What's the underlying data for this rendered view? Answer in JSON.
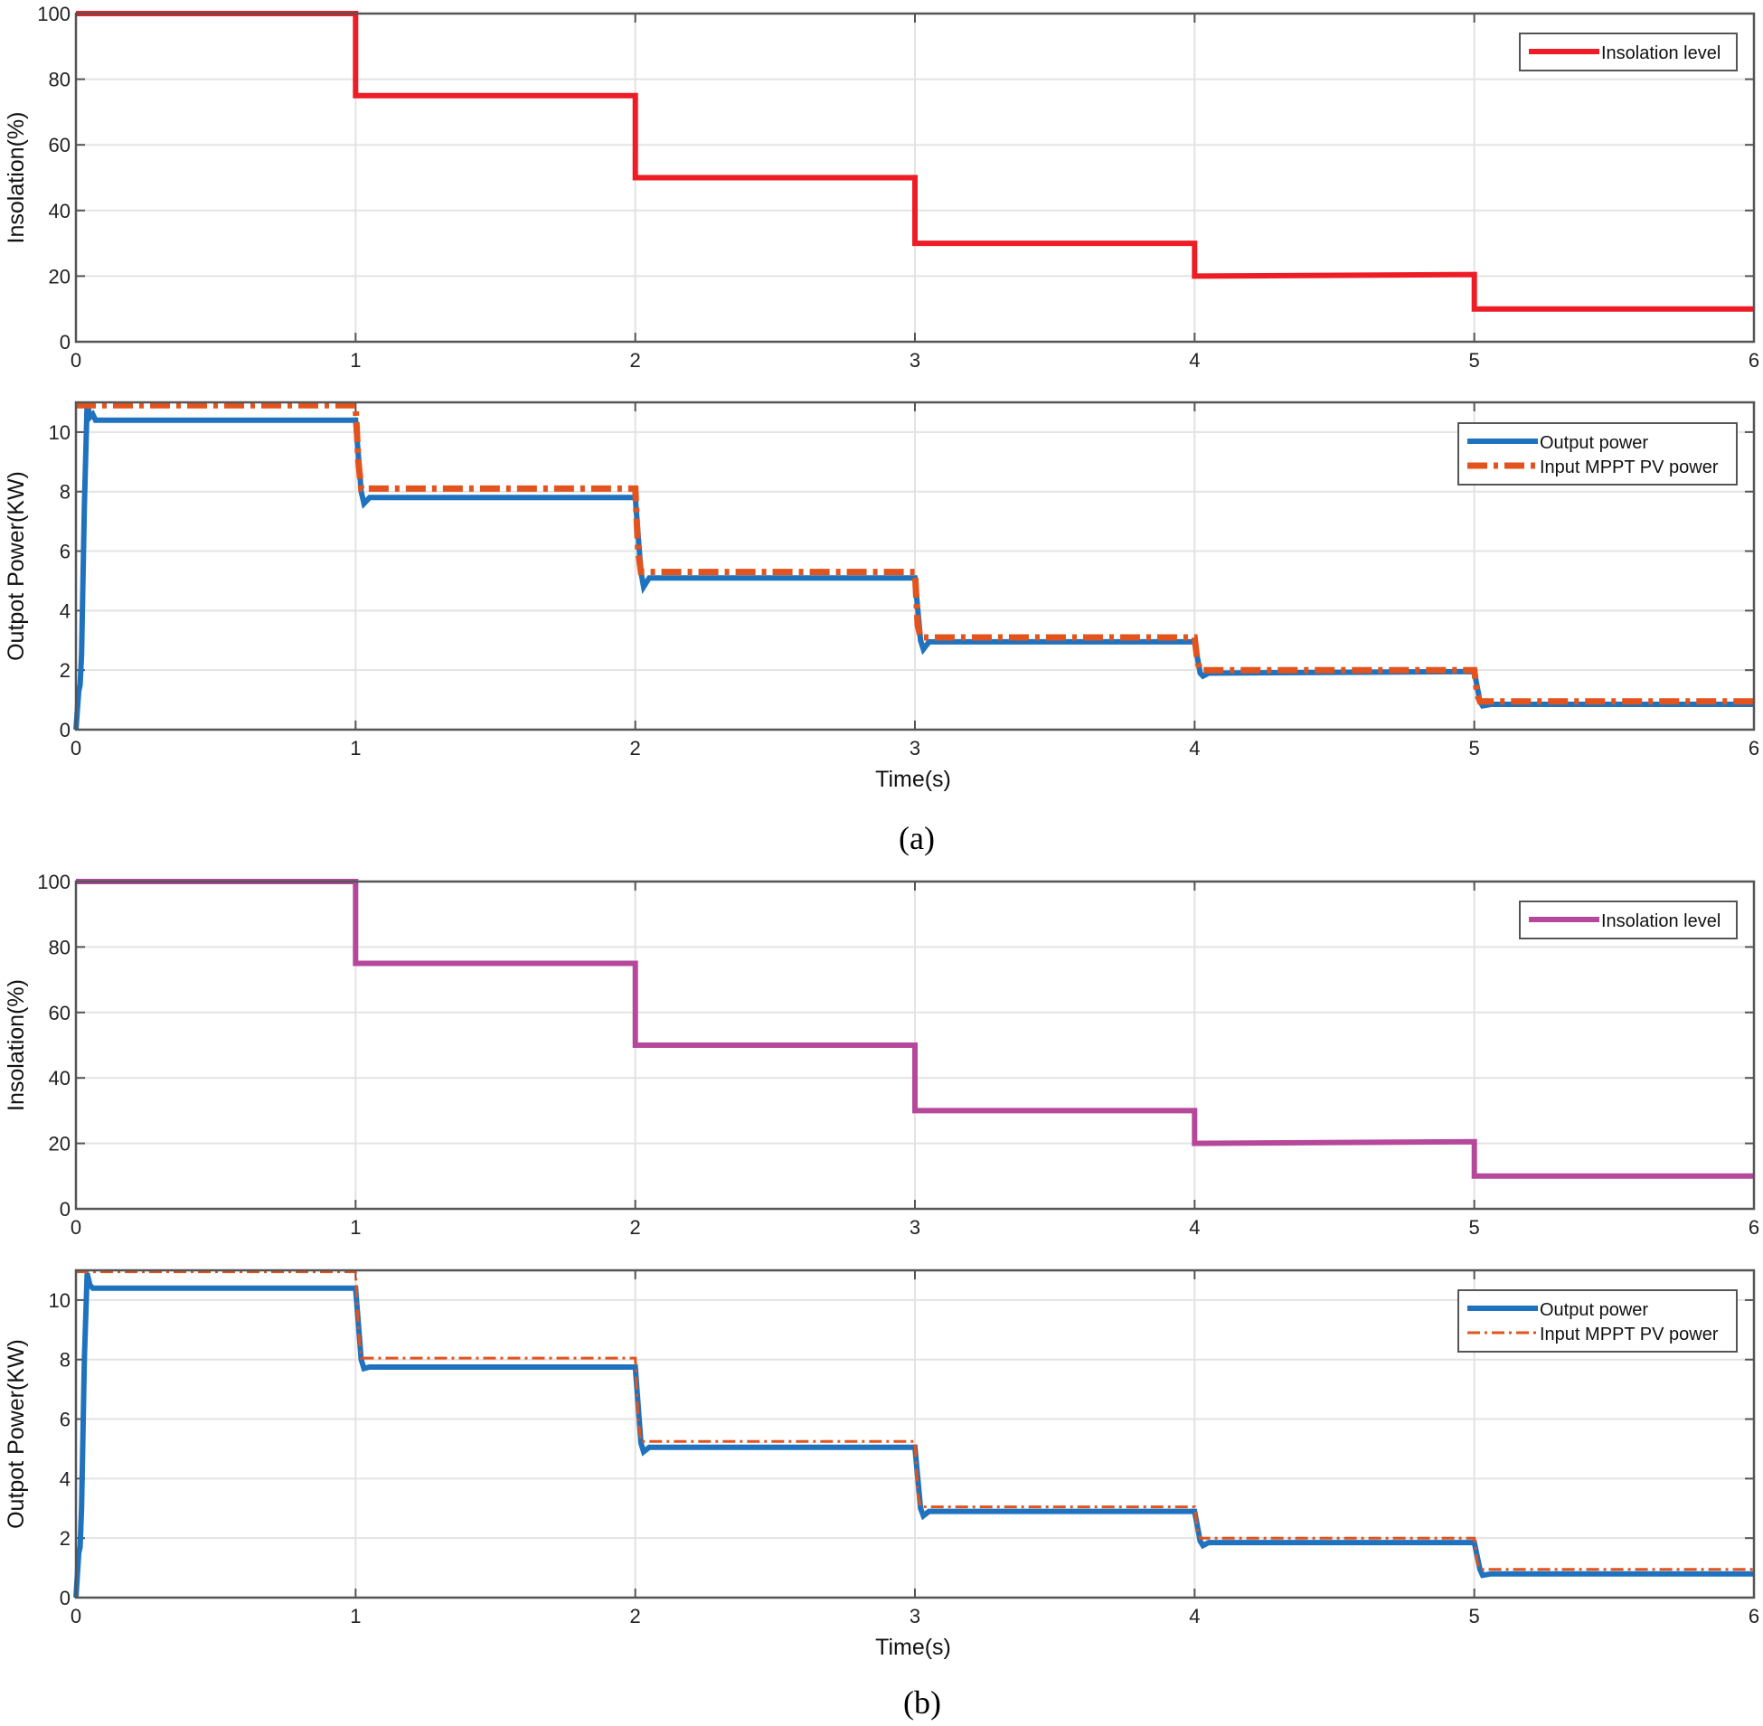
{
  "colors": {
    "insolation_a": "#ee1c25",
    "insolation_b": "#b5489a",
    "output_power": "#1f72bd",
    "input_mppt": "#e2531d",
    "grid": "#e3e3e3",
    "axis": "#555555"
  },
  "chart_data": [
    {
      "id": "a-top",
      "type": "line",
      "xlabel": "",
      "ylabel": "Insolation(%)",
      "xlim": [
        0,
        6
      ],
      "ylim": [
        0,
        100
      ],
      "xticks": [
        "0",
        "1",
        "2",
        "3",
        "4",
        "5",
        "6"
      ],
      "yticks": [
        "0",
        "20",
        "40",
        "60",
        "80",
        "100"
      ],
      "grid": true,
      "legend_position": "top-right",
      "series": [
        {
          "name": "Insolation level",
          "style": "solid",
          "color_key": "insolation_a",
          "x": [
            0,
            1,
            1,
            2,
            2,
            3,
            3,
            4,
            4,
            5,
            5,
            6
          ],
          "y": [
            100,
            100,
            75,
            75,
            50,
            50,
            30,
            30,
            20,
            20.5,
            10,
            10
          ]
        }
      ]
    },
    {
      "id": "a-bottom",
      "type": "line",
      "xlabel": "Time(s)",
      "ylabel": "Outpot Power(KW)",
      "xlim": [
        0,
        6
      ],
      "ylim": [
        0,
        11
      ],
      "xticks": [
        "0",
        "1",
        "2",
        "3",
        "4",
        "5",
        "6"
      ],
      "yticks": [
        "0",
        "2",
        "4",
        "6",
        "8",
        "10"
      ],
      "grid": true,
      "legend_position": "top-right",
      "series": [
        {
          "name": "Output power",
          "style": "solid",
          "color_key": "output_power",
          "x": [
            0,
            0.01,
            0.015,
            0.02,
            0.03,
            0.04,
            0.05,
            0.06,
            0.07,
            1.0,
            1.02,
            1.03,
            1.05,
            2.0,
            2.02,
            2.03,
            2.05,
            3.0,
            3.02,
            3.03,
            3.05,
            4.0,
            4.02,
            4.03,
            4.05,
            5.0,
            5.02,
            5.03,
            5.06,
            6.0
          ],
          "y": [
            0,
            1.3,
            1.5,
            2.5,
            7.5,
            11.0,
            10.5,
            10.6,
            10.4,
            10.4,
            8.0,
            7.6,
            7.8,
            7.8,
            5.3,
            4.8,
            5.1,
            5.1,
            3.0,
            2.7,
            2.95,
            2.95,
            1.9,
            1.8,
            1.9,
            1.95,
            0.95,
            0.8,
            0.85,
            0.85
          ]
        },
        {
          "name": "Input MPPT PV power",
          "style": "dashdot-thick",
          "color_key": "input_mppt",
          "x": [
            0,
            1.0,
            1.01,
            1.02,
            2.0,
            2.01,
            2.02,
            3.0,
            3.01,
            3.02,
            4.0,
            4.01,
            4.02,
            5.0,
            5.01,
            5.02,
            6.0
          ],
          "y": [
            10.9,
            10.9,
            9.0,
            8.1,
            8.1,
            6.0,
            5.3,
            5.3,
            3.5,
            3.1,
            3.1,
            2.3,
            2.0,
            2.0,
            1.2,
            0.95,
            0.95
          ]
        }
      ]
    },
    {
      "id": "b-top",
      "type": "line",
      "xlabel": "",
      "ylabel": "Insolation(%)",
      "xlim": [
        0,
        6
      ],
      "ylim": [
        0,
        100
      ],
      "xticks": [
        "0",
        "1",
        "2",
        "3",
        "4",
        "5",
        "6"
      ],
      "yticks": [
        "0",
        "20",
        "40",
        "60",
        "80",
        "100"
      ],
      "grid": true,
      "legend_position": "top-right",
      "series": [
        {
          "name": "Insolation level",
          "style": "solid",
          "color_key": "insolation_b",
          "x": [
            0,
            1,
            1,
            2,
            2,
            3,
            3,
            4,
            4,
            5,
            5,
            6
          ],
          "y": [
            100,
            100,
            75,
            75,
            50,
            50,
            30,
            30,
            20,
            20.5,
            10,
            10
          ]
        }
      ]
    },
    {
      "id": "b-bottom",
      "type": "line",
      "xlabel": "Time(s)",
      "ylabel": "Outpot Power(KW)",
      "xlim": [
        0,
        6
      ],
      "ylim": [
        0,
        11
      ],
      "xticks": [
        "0",
        "1",
        "2",
        "3",
        "4",
        "5",
        "6"
      ],
      "yticks": [
        "0",
        "2",
        "4",
        "6",
        "8",
        "10"
      ],
      "grid": true,
      "legend_position": "top-right",
      "series": [
        {
          "name": "Output power",
          "style": "solid-thick",
          "color_key": "output_power",
          "x": [
            0,
            0.01,
            0.015,
            0.02,
            0.03,
            0.04,
            0.05,
            0.06,
            1.0,
            1.02,
            1.03,
            1.05,
            2.0,
            2.02,
            2.03,
            2.05,
            3.0,
            3.02,
            3.03,
            3.05,
            4.0,
            4.02,
            4.03,
            4.05,
            5.0,
            5.02,
            5.03,
            5.06,
            6.0
          ],
          "y": [
            0,
            1.5,
            1.7,
            3.0,
            8.0,
            10.9,
            10.5,
            10.4,
            10.4,
            8.0,
            7.7,
            7.75,
            7.75,
            5.2,
            4.9,
            5.05,
            5.05,
            3.0,
            2.75,
            2.9,
            2.9,
            1.9,
            1.75,
            1.85,
            1.85,
            0.95,
            0.75,
            0.8,
            0.8
          ]
        },
        {
          "name": "Input MPPT PV power",
          "style": "dashdot-thin",
          "color_key": "input_mppt",
          "x": [
            0,
            1.0,
            1.01,
            1.02,
            2.0,
            2.01,
            2.02,
            3.0,
            3.01,
            3.02,
            4.0,
            4.01,
            4.02,
            5.0,
            5.01,
            5.02,
            6.0
          ],
          "y": [
            10.95,
            10.95,
            9.0,
            8.05,
            8.05,
            6.0,
            5.25,
            5.25,
            3.5,
            3.05,
            3.05,
            2.3,
            2.0,
            2.0,
            1.2,
            0.95,
            0.95
          ]
        }
      ]
    }
  ],
  "captions": {
    "a": "(a)",
    "b": "(b)"
  }
}
